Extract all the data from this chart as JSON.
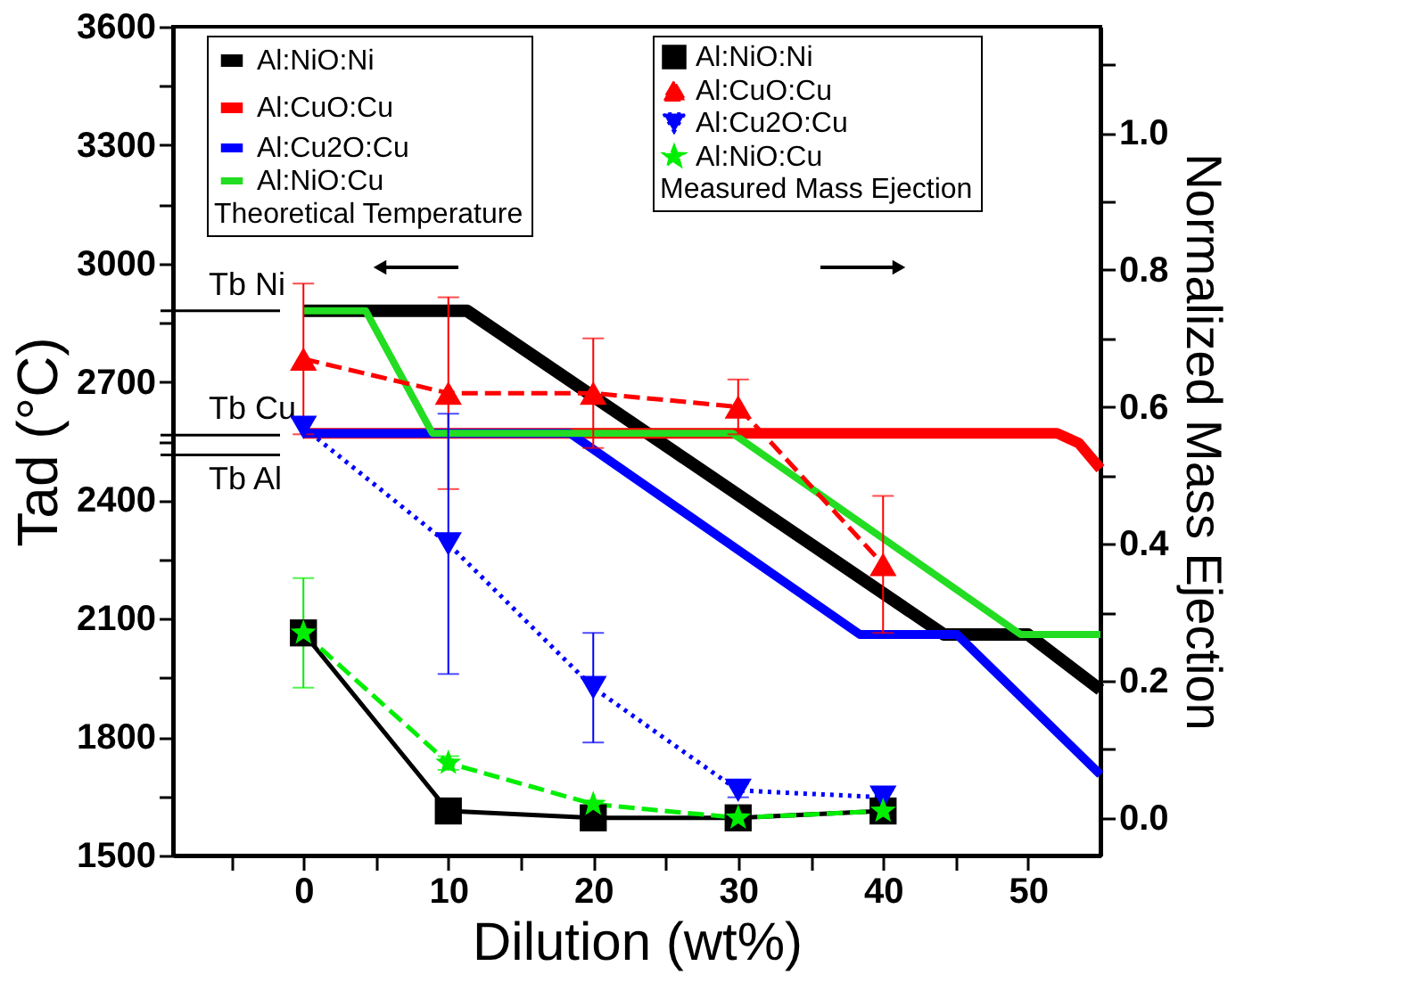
{
  "chart_data": {
    "type": "line",
    "xlabel": "Dilution (wt%)",
    "ylabel": "Tad (°C)",
    "y2label": "Normalized Mass Ejection",
    "xlim": [
      -9,
      55
    ],
    "xticks": [
      {
        "value": -5,
        "label": null
      },
      0,
      {
        "value": 5,
        "label": null
      },
      10,
      {
        "value": 15,
        "label": null
      },
      20,
      {
        "value": 25,
        "label": null
      },
      30,
      {
        "value": 35,
        "label": null
      },
      40,
      {
        "value": 45,
        "label": null
      },
      50
    ],
    "ylim": [
      1500,
      3600
    ],
    "yticks": [
      1500,
      {
        "value": 1650,
        "label": null
      },
      1800,
      {
        "value": 1950,
        "label": null
      },
      2100,
      {
        "value": 2250,
        "label": null
      },
      2400,
      {
        "value": 2550,
        "label": null
      },
      2700,
      {
        "value": 2850,
        "label": null
      },
      3000,
      {
        "value": 3150,
        "label": null
      },
      3300,
      {
        "value": 3450,
        "label": null
      },
      3600
    ],
    "y2lim": [
      -0.055,
      1.155
    ],
    "y2ticks": [
      {
        "value": 0,
        "label": "0.0"
      },
      {
        "value": 0.1,
        "label": null
      },
      0.2,
      {
        "value": 0.3,
        "label": null
      },
      0.4,
      {
        "value": 0.5,
        "label": null
      },
      0.6,
      {
        "value": 0.7,
        "label": null
      },
      0.8,
      {
        "value": 0.9,
        "label": null
      },
      {
        "value": 1,
        "label": "1.0"
      },
      {
        "value": 1.1,
        "label": null
      }
    ],
    "grid": false,
    "legend": "top",
    "annotations": [
      "Theoretical Temperature",
      "Measured Mass Ejection"
    ],
    "ref_lines": [
      {
        "axis": "y",
        "value": 2880,
        "label": "Tb Ni",
        "color": "#000000"
      },
      {
        "axis": "y",
        "value": 2565,
        "label": "Tb Cu",
        "color": "#000000"
      },
      {
        "axis": "y",
        "value": 2515,
        "label": "Tb Al",
        "color": "#000000"
      }
    ],
    "series": [
      {
        "name": "Al:NiO:Ni",
        "color": "#000000",
        "axis": "y",
        "marker": "none",
        "line_style": "solid",
        "x": [
          0,
          11.3,
          44.2,
          50,
          55
        ],
        "values": [
          2880,
          2880,
          2060,
          2060,
          1920
        ]
      },
      {
        "name": "Al:CuO:Cu",
        "color": "#ff0000",
        "axis": "y",
        "marker": "none",
        "line_style": "solid",
        "x": [
          0,
          52,
          53.5,
          55
        ],
        "values": [
          2570,
          2570,
          2545,
          2480
        ]
      },
      {
        "name": "Al:Cu2O:Cu",
        "color": "#0000ff",
        "axis": "y",
        "marker": "none",
        "line_style": "solid",
        "x": [
          0,
          18.4,
          38.4,
          45.1,
          55
        ],
        "values": [
          2570,
          2570,
          2060,
          2060,
          1705
        ]
      },
      {
        "name": "Al:NiO:Cu",
        "color": "#22dd22",
        "axis": "y",
        "marker": "none",
        "line_style": "solid",
        "x": [
          0,
          4.3,
          8.9,
          29.6,
          49.5,
          55
        ],
        "values": [
          2880,
          2880,
          2570,
          2570,
          2060,
          2060
        ]
      },
      {
        "name": "Al:NiO:Ni",
        "color": "#000000",
        "axis": "y2",
        "marker": "square",
        "line_style": "solid",
        "x": [
          0,
          10,
          20,
          30,
          40
        ],
        "values": [
          0.27,
          0.01,
          0.0,
          0.0,
          0.01
        ]
      },
      {
        "name": "Al:CuO:Cu",
        "color": "#ff0000",
        "axis": "y2",
        "marker": "triangle",
        "line_style": "dashed",
        "x": [
          0,
          10,
          20,
          30,
          40
        ],
        "values": [
          0.67,
          0.62,
          0.62,
          0.6,
          0.37
        ],
        "errors": [
          0.11,
          0.14,
          0.08,
          0.04,
          0.1
        ]
      },
      {
        "name": "Al:Cu2O:Cu",
        "color": "#0000ff",
        "axis": "y2",
        "marker": "triangle-down",
        "line_style": "dotted",
        "x": [
          0,
          10,
          20,
          30,
          40
        ],
        "values": [
          0.57,
          0.4,
          0.19,
          0.04,
          0.03
        ],
        "errors": [
          null,
          0.19,
          0.08,
          0.01,
          0.01
        ]
      },
      {
        "name": "Al:NiO:Cu",
        "color": "#00ee00",
        "axis": "y2",
        "marker": "star",
        "line_style": "dashed",
        "x": [
          0,
          10,
          20,
          30,
          40
        ],
        "values": [
          0.27,
          0.08,
          0.02,
          0.0,
          0.01
        ],
        "errors": [
          0.08,
          0.01,
          null,
          null,
          null
        ]
      }
    ]
  }
}
